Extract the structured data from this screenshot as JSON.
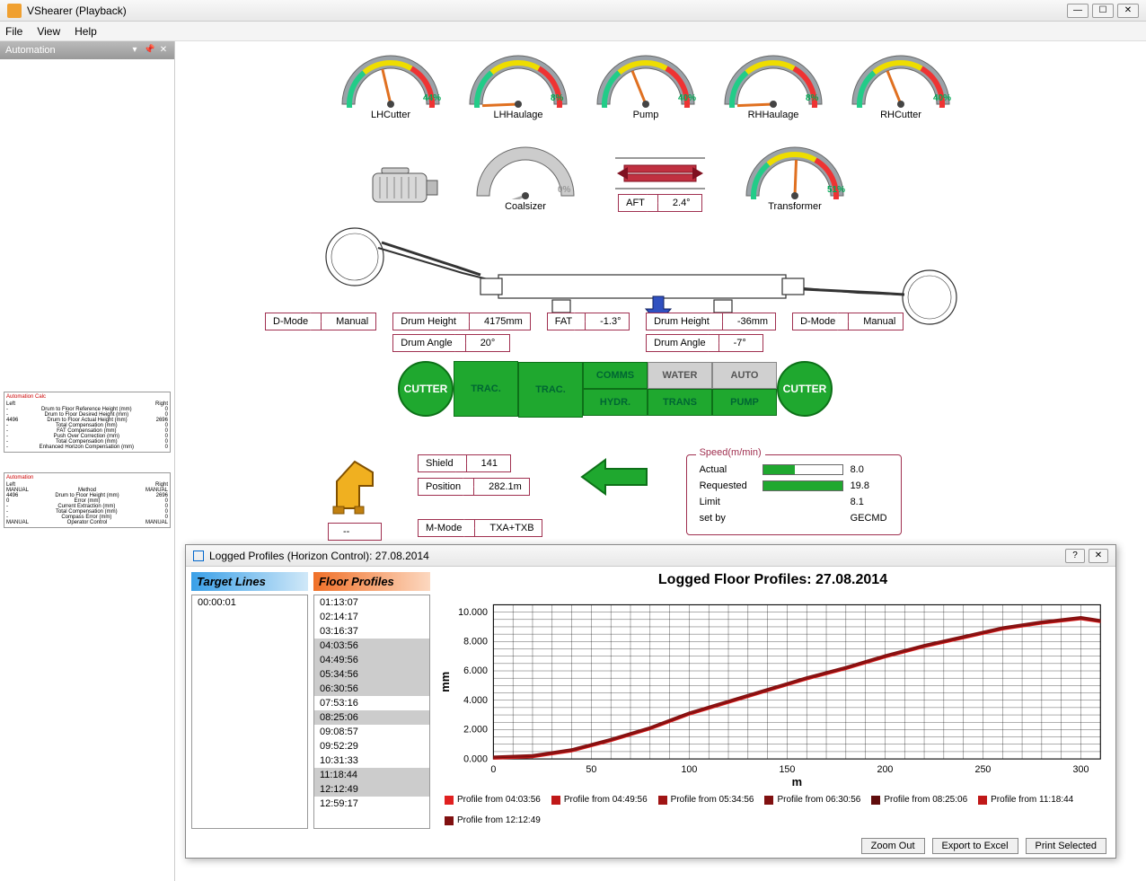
{
  "window": {
    "title": "VShearer (Playback)"
  },
  "menu": {
    "file": "File",
    "view": "View",
    "help": "Help"
  },
  "sidebar": {
    "title": "Automation",
    "table1": {
      "title": "Automation Calc",
      "left": "Left",
      "right": "Right",
      "rows": [
        {
          "n": "Drum to Floor Reference Height (mm)",
          "l": "-",
          "r": "0"
        },
        {
          "n": "Drum to Floor Desired Height (mm)",
          "l": "-",
          "r": "0"
        },
        {
          "n": "Drum to Floor Actual Height (mm)",
          "l": "4496",
          "r": "2696"
        },
        {
          "n": "Total Compensation (mm)",
          "l": "-",
          "r": "0"
        },
        {
          "n": "FAT Compensation (mm)",
          "l": "-",
          "r": "0"
        },
        {
          "n": "Push Over Correction (mm)",
          "l": "-",
          "r": "0"
        },
        {
          "n": "Total Compensation (mm)",
          "l": "-",
          "r": "0"
        },
        {
          "n": "Enhanced Horizon Compensation (mm)",
          "l": "-",
          "r": "0"
        }
      ]
    },
    "table2": {
      "title": "Automation",
      "left": "Left",
      "right": "Right",
      "rows": [
        {
          "n": "Method",
          "l": "MANUAL",
          "r": "MANUAL"
        },
        {
          "n": "Drum to Floor Height (mm)",
          "l": "4496",
          "r": "2696"
        },
        {
          "n": "Error (mm)",
          "l": "0",
          "r": "0"
        },
        {
          "n": "Current Extraction (mm)",
          "l": "-",
          "r": "0"
        },
        {
          "n": "Total Compensation (mm)",
          "l": "-",
          "r": "0"
        },
        {
          "n": "Compass Error (mm)",
          "l": "-",
          "r": "0"
        },
        {
          "n": "Operator Control",
          "l": "MANUAL",
          "r": "MANUAL"
        }
      ]
    }
  },
  "gauges": [
    {
      "label": "LHCutter",
      "value": "44%",
      "pct": 44
    },
    {
      "label": "LHHaulage",
      "value": "8%",
      "pct": 8
    },
    {
      "label": "Pump",
      "value": "40%",
      "pct": 40
    },
    {
      "label": "RHHaulage",
      "value": "8%",
      "pct": 8
    },
    {
      "label": "RHCutter",
      "value": "40%",
      "pct": 40
    }
  ],
  "row2": {
    "coalsizer": {
      "label": "Coalsizer",
      "value": "0%",
      "pct": 0,
      "disabled": true
    },
    "aft": {
      "label": "AFT",
      "value": "2.4°"
    },
    "transformer": {
      "label": "Transformer",
      "value": "51%",
      "pct": 51
    }
  },
  "params": {
    "dmode_l": {
      "label": "D-Mode",
      "value": "Manual"
    },
    "drumheight_l": {
      "label": "Drum Height",
      "value": "4175mm"
    },
    "drumangle_l": {
      "label": "Drum Angle",
      "value": "20°"
    },
    "fat": {
      "label": "FAT",
      "value": "-1.3°"
    },
    "drumheight_r": {
      "label": "Drum Height",
      "value": "-36mm"
    },
    "drumangle_r": {
      "label": "Drum Angle",
      "value": "-7°"
    },
    "dmode_r": {
      "label": "D-Mode",
      "value": "Manual"
    }
  },
  "status": {
    "cutter_l": "CUTTER",
    "trac_l": "TRAC.",
    "comms": "COMMS",
    "water": "WATER",
    "auto": "AUTO",
    "hydr": "HYDR.",
    "trans": "TRANS",
    "pump": "PUMP",
    "trac_r": "TRAC.",
    "cutter_r": "CUTTER"
  },
  "info": {
    "shield": {
      "label": "Shield",
      "value": "141"
    },
    "position": {
      "label": "Position",
      "value": "282.1m"
    },
    "mmode": {
      "label": "M-Mode",
      "value": "TXA+TXB"
    },
    "dash": "--"
  },
  "speed": {
    "title": "Speed(m/min)",
    "actual": {
      "label": "Actual",
      "value": "8.0",
      "pct": 40
    },
    "requested": {
      "label": "Requested",
      "value": "19.8",
      "pct": 100
    },
    "limit": {
      "label": "Limit",
      "value": "8.1"
    },
    "setby": {
      "label": "set by",
      "value": "GECMD"
    }
  },
  "dialog": {
    "title": "Logged Profiles (Horizon Control): 27.08.2014",
    "target_header": "Target Lines",
    "floor_header": "Floor Profiles",
    "target_items": [
      "00:00:01"
    ],
    "floor_items": [
      "01:13:07",
      "02:14:17",
      "03:16:37",
      "04:03:56",
      "04:49:56",
      "05:34:56",
      "06:30:56",
      "07:53:16",
      "08:25:06",
      "09:08:57",
      "09:52:29",
      "10:31:33",
      "11:18:44",
      "12:12:49",
      "12:59:17"
    ],
    "floor_selected": [
      "04:03:56",
      "04:49:56",
      "05:34:56",
      "06:30:56",
      "08:25:06",
      "11:18:44",
      "12:12:49"
    ],
    "chart_title": "Logged Floor Profiles: 27.08.2014",
    "chart": {
      "type": "line",
      "xlabel": "m",
      "ylabel": "mm",
      "xlim": [
        0,
        310
      ],
      "ylim": [
        0,
        10.5
      ],
      "xticks": [
        0,
        50,
        100,
        150,
        200,
        250,
        300
      ],
      "yticks": [
        0,
        2,
        4,
        6,
        8,
        10
      ],
      "yticklabels": [
        "0.000",
        "2.000",
        "4.000",
        "6.000",
        "8.000",
        "10.000"
      ],
      "grid_color": "#000000",
      "background_color": "#ffffff",
      "series": [
        {
          "name": "Profile from 04:03:56",
          "color": "#e02020"
        },
        {
          "name": "Profile from 04:49:56",
          "color": "#c01818"
        },
        {
          "name": "Profile from 05:34:56",
          "color": "#a01414"
        },
        {
          "name": "Profile from 06:30:56",
          "color": "#801010"
        },
        {
          "name": "Profile from 08:25:06",
          "color": "#600c0c"
        },
        {
          "name": "Profile from 11:18:44",
          "color": "#c01818"
        },
        {
          "name": "Profile from 12:12:49",
          "color": "#801010"
        }
      ],
      "profile_points": [
        [
          0,
          0
        ],
        [
          20,
          0.1
        ],
        [
          40,
          0.5
        ],
        [
          60,
          1.2
        ],
        [
          80,
          2.0
        ],
        [
          100,
          3.0
        ],
        [
          120,
          3.8
        ],
        [
          140,
          4.6
        ],
        [
          160,
          5.4
        ],
        [
          180,
          6.1
        ],
        [
          200,
          6.9
        ],
        [
          220,
          7.6
        ],
        [
          240,
          8.2
        ],
        [
          260,
          8.8
        ],
        [
          280,
          9.2
        ],
        [
          300,
          9.5
        ],
        [
          310,
          9.3
        ]
      ]
    },
    "buttons": {
      "zoom": "Zoom Out",
      "excel": "Export to Excel",
      "print": "Print Selected"
    }
  },
  "colors": {
    "accent": "#a03050",
    "green": "#1fa82f",
    "gauge_bg": "#9aa2a8"
  }
}
